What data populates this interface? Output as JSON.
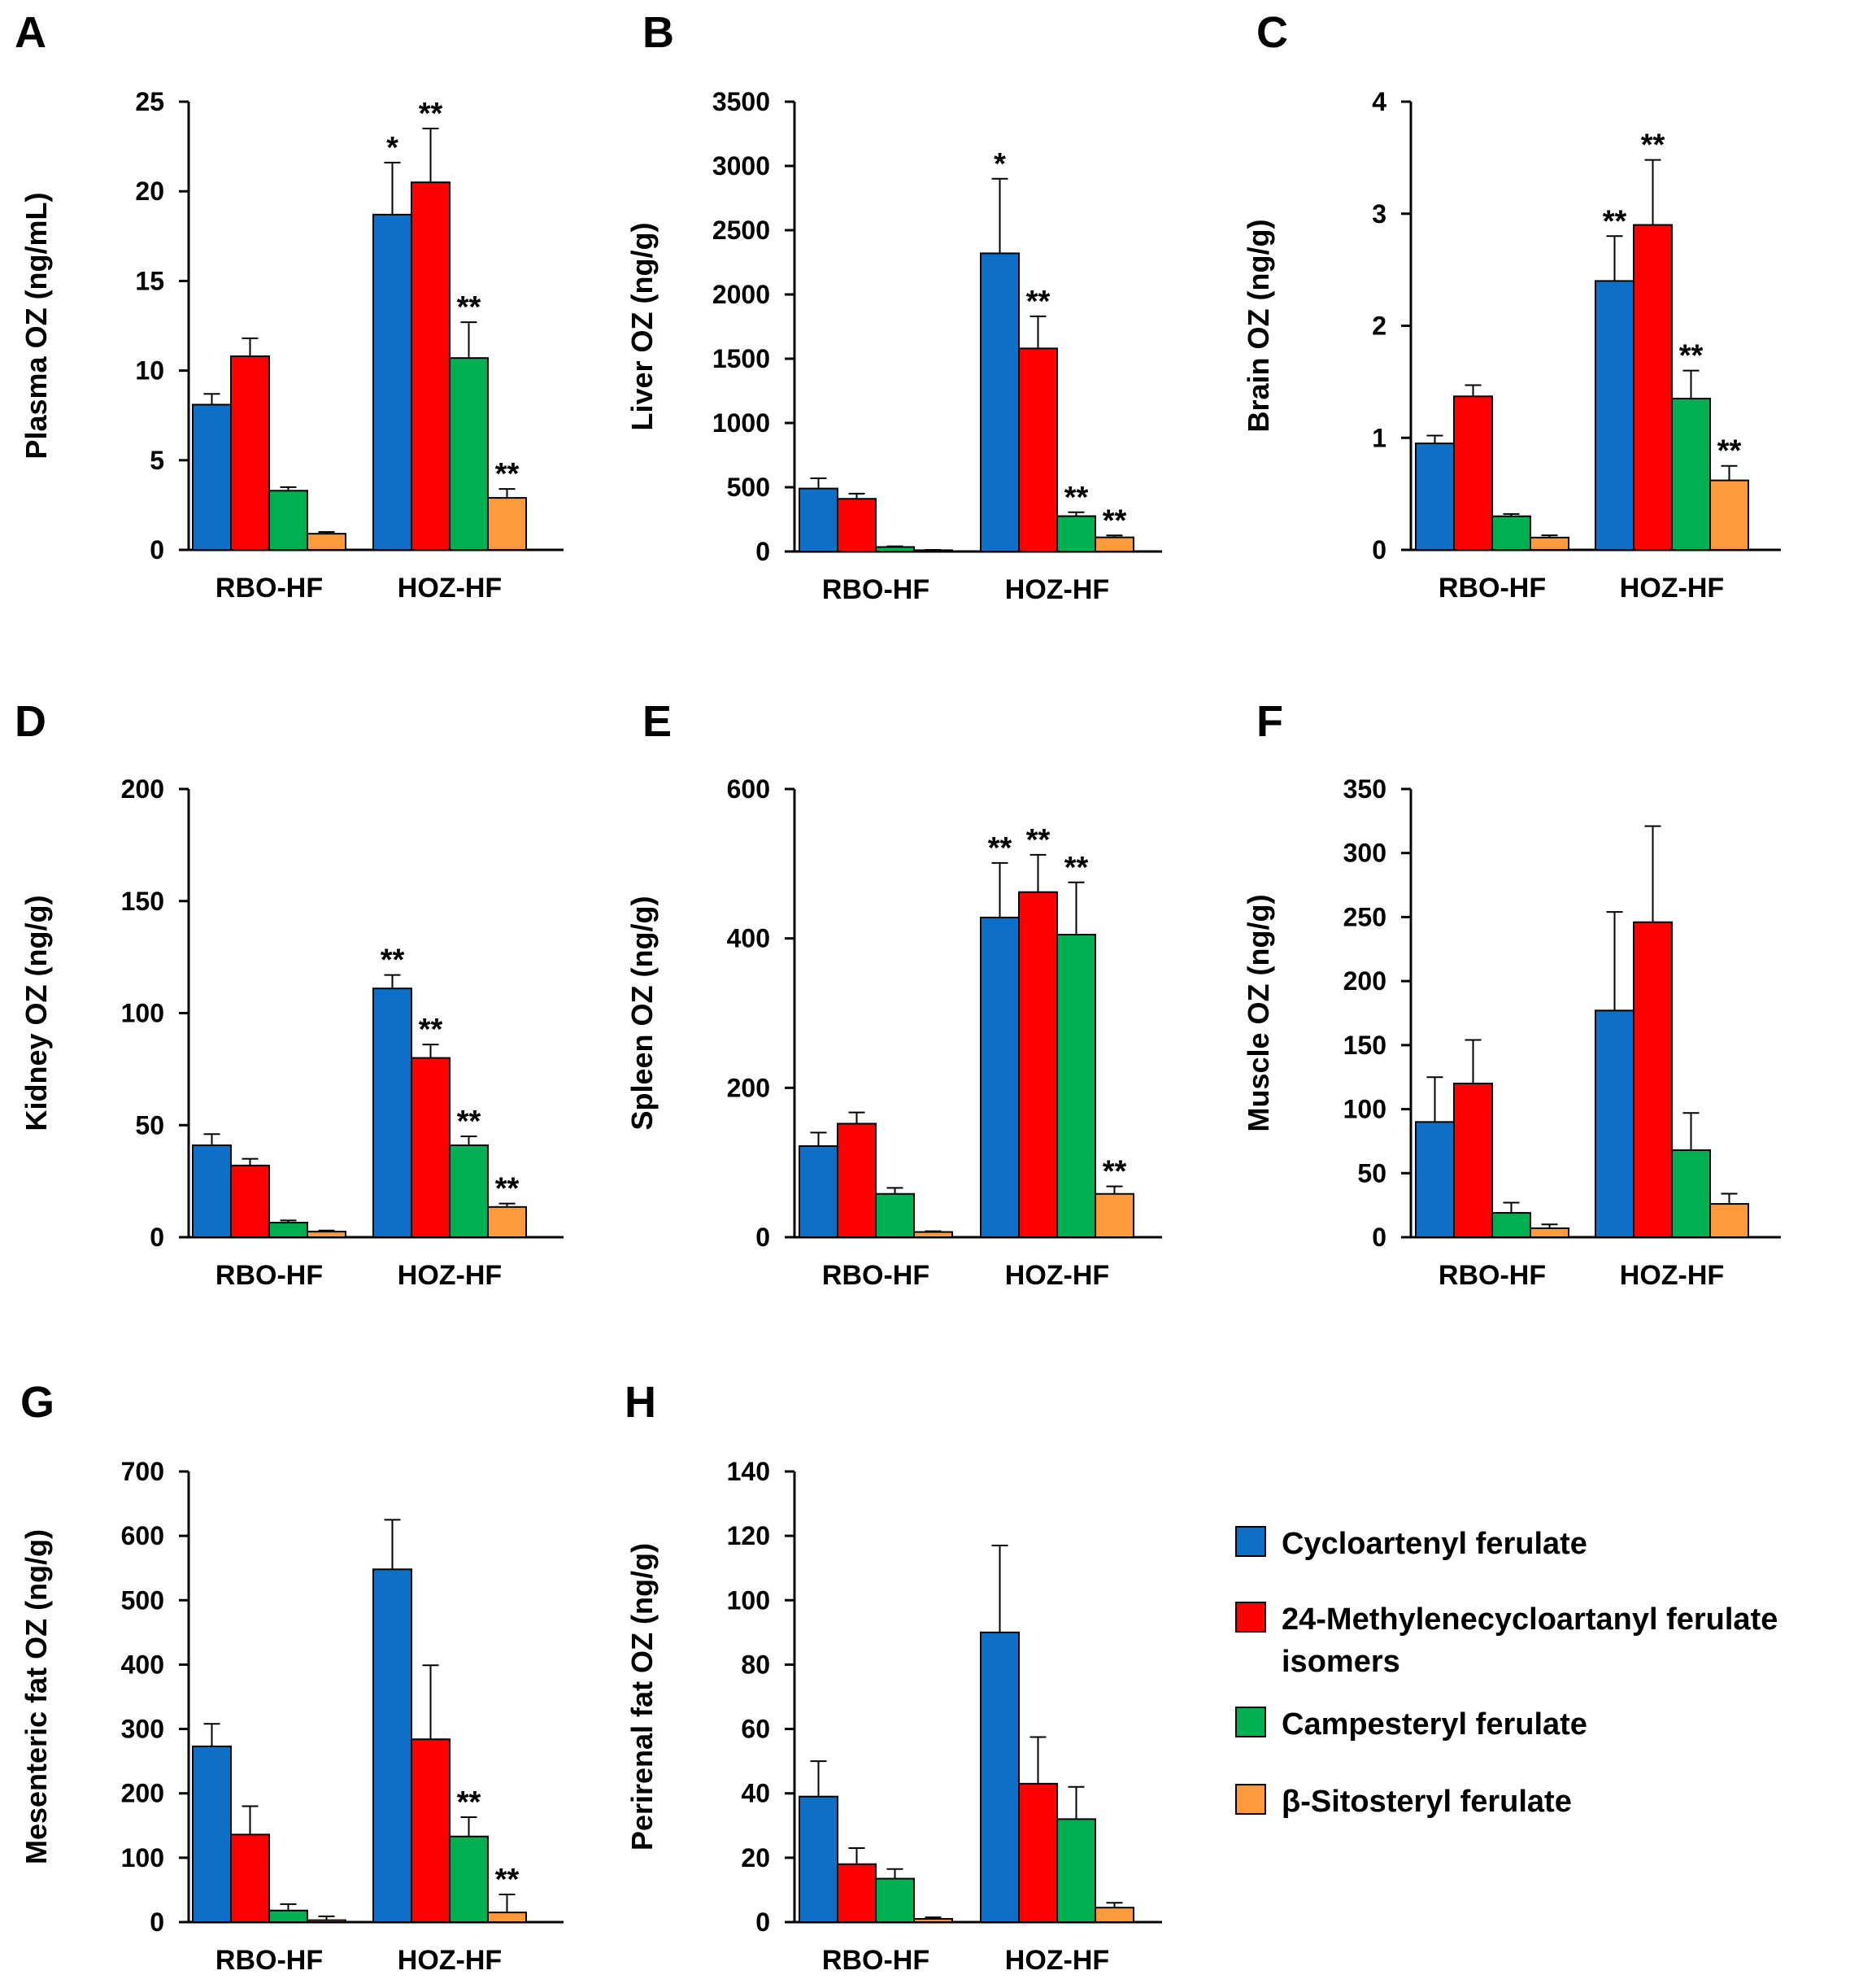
{
  "colors": {
    "Cycloartenyl ferulate": "#0e6fc7",
    "24-Methylenecycloartanyl ferulate isomers": "#ff0000",
    "Campesteryl ferulate": "#00b050",
    "β-Sitosteryl ferulate": "#ff9a3c"
  },
  "legend": [
    {
      "label": "Cycloartenyl ferulate",
      "lines": [
        "Cycloartenyl ferulate"
      ],
      "series": "Cycloartenyl ferulate"
    },
    {
      "label": "24-Methylenecycloartanyl ferulate isomers",
      "lines": [
        "24-Methylenecycloartanyl ferulate",
        "isomers"
      ],
      "series": "24-Methylenecycloartanyl ferulate isomers"
    },
    {
      "label": "Campesteryl ferulate",
      "lines": [
        "Campesteryl ferulate"
      ],
      "series": "Campesteryl ferulate"
    },
    {
      "label": "β-Sitosteryl ferulate",
      "lines": [
        "β-Sitosteryl ferulate"
      ],
      "series": "β-Sitosteryl ferulate"
    }
  ],
  "chart_data": [
    {
      "panel": "A",
      "type": "bar",
      "ylabel": "Plasma OZ (ng/mL)",
      "ylim": [
        0,
        25
      ],
      "yticks": [
        0,
        5,
        10,
        15,
        20,
        25
      ],
      "categories": [
        "RBO-HF",
        "HOZ-HF"
      ],
      "series": [
        {
          "name": "Cycloartenyl ferulate",
          "values": [
            8.1,
            18.7
          ],
          "errors": [
            0.6,
            2.9
          ],
          "sig": [
            "",
            "*"
          ]
        },
        {
          "name": "24-Methylenecycloartanyl ferulate isomers",
          "values": [
            10.8,
            20.5
          ],
          "errors": [
            1.0,
            3.0
          ],
          "sig": [
            "",
            "**"
          ]
        },
        {
          "name": "Campesteryl ferulate",
          "values": [
            3.3,
            10.7
          ],
          "errors": [
            0.2,
            2.0
          ],
          "sig": [
            "",
            "**"
          ]
        },
        {
          "name": "β-Sitosteryl ferulate",
          "values": [
            0.9,
            2.9
          ],
          "errors": [
            0.1,
            0.5
          ],
          "sig": [
            "",
            "**"
          ]
        }
      ]
    },
    {
      "panel": "B",
      "type": "bar",
      "ylabel": "Liver OZ (ng/g)",
      "ylim": [
        0,
        3500
      ],
      "yticks": [
        0,
        500,
        1000,
        1500,
        2000,
        2500,
        3000,
        3500
      ],
      "categories": [
        "RBO-HF",
        "HOZ-HF"
      ],
      "series": [
        {
          "name": "Cycloartenyl ferulate",
          "values": [
            490,
            2320
          ],
          "errors": [
            80,
            580
          ],
          "sig": [
            "",
            "*"
          ]
        },
        {
          "name": "24-Methylenecycloartanyl ferulate isomers",
          "values": [
            410,
            1580
          ],
          "errors": [
            40,
            250
          ],
          "sig": [
            "",
            "**"
          ]
        },
        {
          "name": "Campesteryl ferulate",
          "values": [
            35,
            275
          ],
          "errors": [
            5,
            30
          ],
          "sig": [
            "",
            "**"
          ]
        },
        {
          "name": "β-Sitosteryl ferulate",
          "values": [
            10,
            110
          ],
          "errors": [
            3,
            15
          ],
          "sig": [
            "",
            "**"
          ]
        }
      ]
    },
    {
      "panel": "C",
      "type": "bar",
      "ylabel": "Brain OZ (ng/g)",
      "ylim": [
        0,
        4
      ],
      "yticks": [
        0,
        1,
        2,
        3,
        4
      ],
      "categories": [
        "RBO-HF",
        "HOZ-HF"
      ],
      "series": [
        {
          "name": "Cycloartenyl ferulate",
          "values": [
            0.95,
            2.4
          ],
          "errors": [
            0.07,
            0.4
          ],
          "sig": [
            "",
            "**"
          ]
        },
        {
          "name": "24-Methylenecycloartanyl ferulate isomers",
          "values": [
            1.37,
            2.9
          ],
          "errors": [
            0.1,
            0.58
          ],
          "sig": [
            "",
            "**"
          ]
        },
        {
          "name": "Campesteryl ferulate",
          "values": [
            0.3,
            1.35
          ],
          "errors": [
            0.02,
            0.25
          ],
          "sig": [
            "",
            "**"
          ]
        },
        {
          "name": "β-Sitosteryl ferulate",
          "values": [
            0.11,
            0.62
          ],
          "errors": [
            0.02,
            0.13
          ],
          "sig": [
            "",
            "**"
          ]
        }
      ]
    },
    {
      "panel": "D",
      "type": "bar",
      "ylabel": "Kidney OZ (ng/g)",
      "ylim": [
        0,
        200
      ],
      "yticks": [
        0,
        50,
        100,
        150,
        200
      ],
      "categories": [
        "RBO-HF",
        "HOZ-HF"
      ],
      "series": [
        {
          "name": "Cycloartenyl ferulate",
          "values": [
            41,
            111
          ],
          "errors": [
            5,
            6
          ],
          "sig": [
            "",
            "**"
          ]
        },
        {
          "name": "24-Methylenecycloartanyl ferulate isomers",
          "values": [
            32,
            80
          ],
          "errors": [
            3,
            6
          ],
          "sig": [
            "",
            "**"
          ]
        },
        {
          "name": "Campesteryl ferulate",
          "values": [
            6.5,
            41
          ],
          "errors": [
            1,
            4
          ],
          "sig": [
            "",
            "**"
          ]
        },
        {
          "name": "β-Sitosteryl ferulate",
          "values": [
            2.5,
            13.5
          ],
          "errors": [
            0.5,
            1.5
          ],
          "sig": [
            "",
            "**"
          ]
        }
      ]
    },
    {
      "panel": "E",
      "type": "bar",
      "ylabel": "Spleen OZ (ng/g)",
      "ylim": [
        0,
        600
      ],
      "yticks": [
        0,
        200,
        400,
        600
      ],
      "categories": [
        "RBO-HF",
        "HOZ-HF"
      ],
      "series": [
        {
          "name": "Cycloartenyl ferulate",
          "values": [
            122,
            428
          ],
          "errors": [
            18,
            73
          ],
          "sig": [
            "",
            "**"
          ]
        },
        {
          "name": "24-Methylenecycloartanyl ferulate isomers",
          "values": [
            152,
            462
          ],
          "errors": [
            15,
            50
          ],
          "sig": [
            "",
            "**"
          ]
        },
        {
          "name": "Campesteryl ferulate",
          "values": [
            58,
            405
          ],
          "errors": [
            8,
            70
          ],
          "sig": [
            "",
            "**"
          ]
        },
        {
          "name": "β-Sitosteryl ferulate",
          "values": [
            7,
            58
          ],
          "errors": [
            1,
            10
          ],
          "sig": [
            "",
            "**"
          ]
        }
      ]
    },
    {
      "panel": "F",
      "type": "bar",
      "ylabel": "Muscle OZ (ng/g)",
      "ylim": [
        0,
        350
      ],
      "yticks": [
        0,
        50,
        100,
        150,
        200,
        250,
        300,
        350
      ],
      "categories": [
        "RBO-HF",
        "HOZ-HF"
      ],
      "series": [
        {
          "name": "Cycloartenyl ferulate",
          "values": [
            90,
            177
          ],
          "errors": [
            35,
            77
          ],
          "sig": [
            "",
            ""
          ]
        },
        {
          "name": "24-Methylenecycloartanyl ferulate isomers",
          "values": [
            120,
            246
          ],
          "errors": [
            34,
            75
          ],
          "sig": [
            "",
            ""
          ]
        },
        {
          "name": "Campesteryl ferulate",
          "values": [
            19,
            68
          ],
          "errors": [
            8,
            29
          ],
          "sig": [
            "",
            ""
          ]
        },
        {
          "name": "β-Sitosteryl ferulate",
          "values": [
            7,
            26
          ],
          "errors": [
            3,
            8
          ],
          "sig": [
            "",
            ""
          ]
        }
      ]
    },
    {
      "panel": "G",
      "type": "bar",
      "ylabel": "Mesenteric fat OZ (ng/g)",
      "ylim": [
        0,
        700
      ],
      "yticks": [
        0,
        100,
        200,
        300,
        400,
        500,
        600,
        700
      ],
      "categories": [
        "RBO-HF",
        "HOZ-HF"
      ],
      "series": [
        {
          "name": "Cycloartenyl ferulate",
          "values": [
            273,
            548
          ],
          "errors": [
            35,
            77
          ],
          "sig": [
            "",
            ""
          ]
        },
        {
          "name": "24-Methylenecycloartanyl ferulate isomers",
          "values": [
            136,
            284
          ],
          "errors": [
            44,
            115
          ],
          "sig": [
            "",
            ""
          ]
        },
        {
          "name": "Campesteryl ferulate",
          "values": [
            18,
            133
          ],
          "errors": [
            10,
            30
          ],
          "sig": [
            "",
            "**"
          ]
        },
        {
          "name": "β-Sitosteryl ferulate",
          "values": [
            3,
            15
          ],
          "errors": [
            6,
            28
          ],
          "sig": [
            "",
            "**"
          ]
        }
      ]
    },
    {
      "panel": "H",
      "type": "bar",
      "ylabel": "Perirenal fat OZ (ng/g)",
      "ylim": [
        0,
        140
      ],
      "yticks": [
        0,
        20,
        40,
        60,
        80,
        100,
        120,
        140
      ],
      "categories": [
        "RBO-HF",
        "HOZ-HF"
      ],
      "series": [
        {
          "name": "Cycloartenyl ferulate",
          "values": [
            39,
            90
          ],
          "errors": [
            11,
            27
          ],
          "sig": [
            "",
            ""
          ]
        },
        {
          "name": "24-Methylenecycloartanyl ferulate isomers",
          "values": [
            18,
            43
          ],
          "errors": [
            5,
            14.5
          ],
          "sig": [
            "",
            ""
          ]
        },
        {
          "name": "Campesteryl ferulate",
          "values": [
            13.5,
            32
          ],
          "errors": [
            3,
            10
          ],
          "sig": [
            "",
            ""
          ]
        },
        {
          "name": "β-Sitosteryl ferulate",
          "values": [
            1,
            4.5
          ],
          "errors": [
            0.5,
            1.5
          ],
          "sig": [
            "",
            ""
          ]
        }
      ]
    }
  ]
}
